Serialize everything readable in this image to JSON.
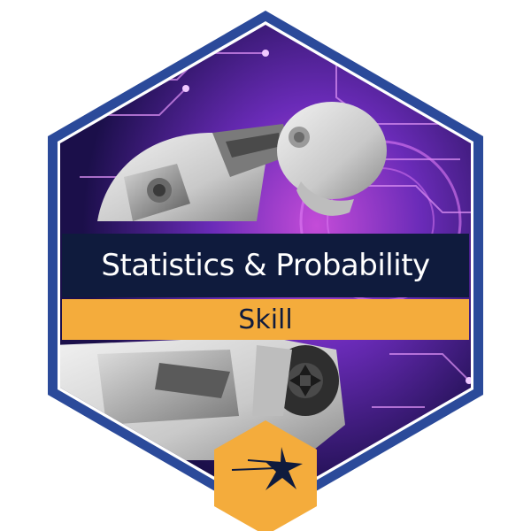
{
  "badge": {
    "title": "Statistics & Probability",
    "subtitle": "Skill",
    "logo_icon": "lockheed-star-icon",
    "image_subject": "robot-icon"
  },
  "colors": {
    "border_blue": "#2b4a9a",
    "title_band": "#0f1b3d",
    "subtitle_band": "#f4ac3c",
    "logo_hex": "#f4ac3c",
    "circuit_purple": "#6a2bb8",
    "circuit_magenta": "#c44cd8"
  }
}
